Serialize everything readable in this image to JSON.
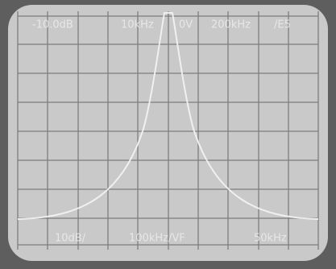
{
  "screen": {
    "top_readout": [
      "-10.0dB",
      "10kHz",
      "0V",
      "200kHz",
      "/E5"
    ],
    "bottom_readout": [
      "10dB/",
      "100kHz/VF",
      "50kHz"
    ]
  }
}
